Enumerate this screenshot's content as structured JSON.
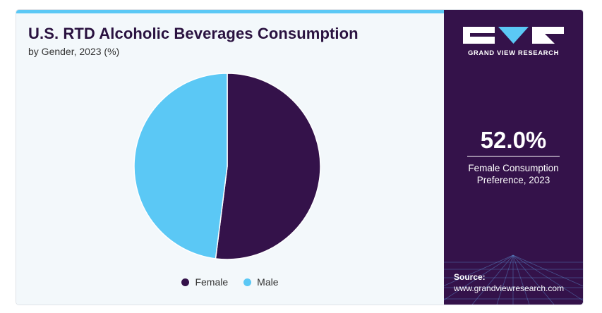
{
  "title": "U.S. RTD Alcoholic Beverages Consumption",
  "subtitle": "by Gender, 2023 (%)",
  "colors": {
    "female": "#34124a",
    "male": "#5bc8f5",
    "accent": "#5bc8f5",
    "panel": "#34124a"
  },
  "chart_data": {
    "type": "pie",
    "title": "U.S. RTD Alcoholic Beverages Consumption",
    "subtitle": "by Gender, 2023 (%)",
    "categories": [
      "Female",
      "Male"
    ],
    "values": [
      52.0,
      48.0
    ],
    "colors": [
      "#34124a",
      "#5bc8f5"
    ],
    "legend_position": "bottom"
  },
  "legend": {
    "female": "Female",
    "male": "Male"
  },
  "brand": {
    "name": "GRAND VIEW RESEARCH",
    "logo_icon": "gvr-logo-icon"
  },
  "stat": {
    "value": "52.0%",
    "label_line1": "Female Consumption",
    "label_line2": "Preference, 2023"
  },
  "source": {
    "label": "Source:",
    "url": "www.grandviewresearch.com"
  }
}
